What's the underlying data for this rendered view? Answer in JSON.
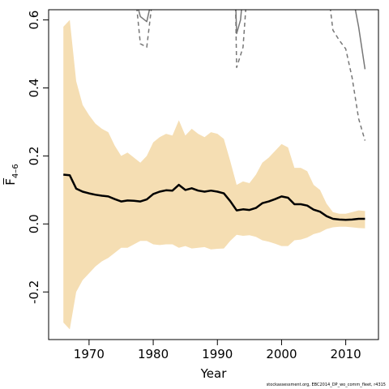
{
  "chart_data": {
    "type": "line",
    "xlabel": "Year",
    "ylabel": "F̅",
    "ylabel_subscript": "4–6",
    "xlim": [
      1963.7,
      2015.1
    ],
    "ylim": [
      -0.34,
      0.63
    ],
    "x_ticks": [
      1970,
      1980,
      1990,
      2000,
      2010
    ],
    "x_tick_labels": [
      "1970",
      "1980",
      "1990",
      "2000",
      "2010"
    ],
    "y_ticks": [
      -0.2,
      0.0,
      0.2,
      0.4,
      0.6
    ],
    "y_tick_labels": [
      "-0.2",
      "0.0",
      "0.2",
      "0.4",
      "0.6"
    ],
    "grid": false,
    "colors": {
      "band": "#f5deb3",
      "median": "#000000",
      "reference": "#777777"
    },
    "band": {
      "x": [
        1966,
        1967,
        1968,
        1969,
        1970,
        1971,
        1972,
        1973,
        1974,
        1975,
        1976,
        1977,
        1978,
        1979,
        1980,
        1981,
        1982,
        1983,
        1984,
        1985,
        1986,
        1987,
        1988,
        1989,
        1990,
        1991,
        1992,
        1993,
        1994,
        1995,
        1996,
        1997,
        1998,
        1999,
        2000,
        2001,
        2002,
        2003,
        2004,
        2005,
        2006,
        2007,
        2008,
        2009,
        2010,
        2011,
        2012,
        2013
      ],
      "upper": [
        0.58,
        0.6,
        0.42,
        0.35,
        0.32,
        0.295,
        0.28,
        0.27,
        0.23,
        0.2,
        0.21,
        0.195,
        0.18,
        0.2,
        0.24,
        0.255,
        0.265,
        0.26,
        0.305,
        0.26,
        0.28,
        0.265,
        0.255,
        0.27,
        0.265,
        0.25,
        0.185,
        0.115,
        0.125,
        0.12,
        0.145,
        0.18,
        0.195,
        0.215,
        0.235,
        0.225,
        0.165,
        0.165,
        0.155,
        0.115,
        0.1,
        0.06,
        0.035,
        0.03,
        0.03,
        0.035,
        0.04,
        0.038
      ],
      "lower": [
        -0.29,
        -0.31,
        -0.2,
        -0.165,
        -0.145,
        -0.125,
        -0.11,
        -0.1,
        -0.085,
        -0.07,
        -0.07,
        -0.06,
        -0.05,
        -0.05,
        -0.06,
        -0.062,
        -0.06,
        -0.06,
        -0.07,
        -0.065,
        -0.072,
        -0.07,
        -0.068,
        -0.075,
        -0.073,
        -0.072,
        -0.05,
        -0.032,
        -0.035,
        -0.033,
        -0.038,
        -0.048,
        -0.052,
        -0.058,
        -0.065,
        -0.065,
        -0.048,
        -0.046,
        -0.04,
        -0.03,
        -0.025,
        -0.015,
        -0.01,
        -0.008,
        -0.008,
        -0.01,
        -0.012,
        -0.013
      ]
    },
    "series": [
      {
        "style": "solid-black",
        "x": [
          1966,
          1967,
          1968,
          1969,
          1970,
          1971,
          1972,
          1973,
          1974,
          1975,
          1976,
          1977,
          1978,
          1979,
          1980,
          1981,
          1982,
          1983,
          1984,
          1985,
          1986,
          1987,
          1988,
          1989,
          1990,
          1991,
          1992,
          1993,
          1994,
          1995,
          1996,
          1997,
          1998,
          1999,
          2000,
          2001,
          2002,
          2003,
          2004,
          2005,
          2006,
          2007,
          2008,
          2009,
          2010,
          2011,
          2012,
          2013
        ],
        "y": [
          0.145,
          0.143,
          0.104,
          0.095,
          0.09,
          0.086,
          0.083,
          0.081,
          0.073,
          0.066,
          0.069,
          0.068,
          0.066,
          0.072,
          0.088,
          0.095,
          0.099,
          0.098,
          0.115,
          0.1,
          0.105,
          0.098,
          0.095,
          0.098,
          0.095,
          0.09,
          0.067,
          0.04,
          0.043,
          0.041,
          0.047,
          0.061,
          0.066,
          0.073,
          0.081,
          0.077,
          0.058,
          0.058,
          0.054,
          0.042,
          0.036,
          0.023,
          0.015,
          0.013,
          0.012,
          0.013,
          0.015,
          0.015
        ]
      },
      {
        "style": "solid-gray",
        "x": [
          1977,
          1978,
          1979,
          1980
        ],
        "y": [
          0.68,
          0.61,
          0.595,
          0.68
        ]
      },
      {
        "style": "solid-gray",
        "x": [
          1992.8,
          1993,
          1993.6,
          1994
        ],
        "y": [
          0.68,
          0.56,
          0.6,
          0.68
        ]
      },
      {
        "style": "solid-gray",
        "x": [
          2011,
          2012,
          2013
        ],
        "y": [
          0.68,
          0.58,
          0.455
        ]
      },
      {
        "style": "dashed-gray",
        "x": [
          1977.2,
          1978,
          1979,
          1980
        ],
        "y": [
          0.68,
          0.53,
          0.52,
          0.68
        ]
      },
      {
        "style": "dashed-gray",
        "x": [
          1992.8,
          1993,
          1994,
          1994.6
        ],
        "y": [
          0.68,
          0.46,
          0.52,
          0.68
        ]
      },
      {
        "style": "dashed-gray",
        "x": [
          2007.3,
          2008,
          2009,
          2010,
          2011,
          2012,
          2013
        ],
        "y": [
          0.68,
          0.57,
          0.54,
          0.515,
          0.43,
          0.31,
          0.245
        ]
      }
    ]
  },
  "footer": {
    "note": "stockassessment.org, EBC2014_DP_wo_comm_fleet, r4315"
  }
}
